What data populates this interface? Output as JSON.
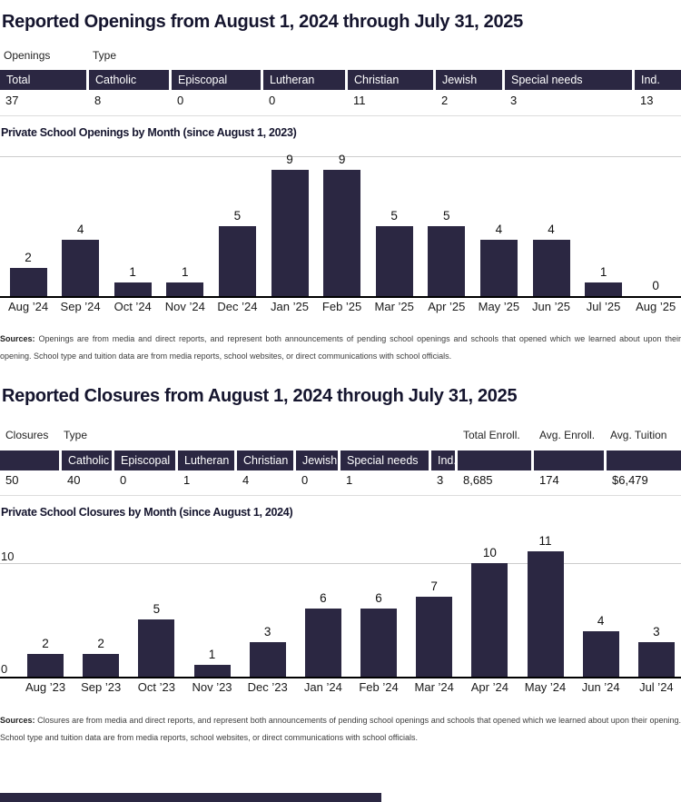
{
  "openings": {
    "title": "Reported Openings from August 1, 2024 through July 31, 2025",
    "group_labels": [
      "Openings",
      "Type"
    ],
    "table": {
      "header_cells": [
        "Total",
        "Catholic",
        "Episcopal",
        "Lutheran",
        "Christian",
        "Jewish",
        "Special needs",
        "Ind."
      ],
      "values": [
        "37",
        "8",
        "0",
        "0",
        "11",
        "2",
        "3",
        "13"
      ]
    },
    "sources_label": "Sources:",
    "sources_text": "Openings are from media and direct reports, and represent both announcements of pending school openings and schools that opened which we learned about upon their opening. School type and tuition data are from media reports, school websites, or direct communications with school officials."
  },
  "closures": {
    "title": "Reported Closures from August 1, 2024 through July 31, 2025",
    "group_labels": [
      "Closures",
      "Type",
      "Total Enroll.",
      "Avg. Enroll.",
      "Avg. Tuition"
    ],
    "table": {
      "header_cells": [
        "",
        "Catholic",
        "Episcopal",
        "Lutheran",
        "Christian",
        "Jewish",
        "Special needs",
        "Ind.",
        "",
        "",
        ""
      ],
      "values": [
        "50",
        "40",
        "0",
        "1",
        "4",
        "0",
        "1",
        "3",
        "8,685",
        "174",
        "$6,479"
      ]
    },
    "sources_label": "Sources:",
    "sources_text": "Closures are from media and direct reports, and represent both announcements of pending school openings and schools that opened which we learned about upon their opening. School type and tuition data are from media reports, school websites, or direct communications with school officials."
  },
  "chart_data": [
    {
      "type": "bar",
      "title": "Private School Openings by Month (since August 1, 2023)",
      "categories": [
        "Aug ’24",
        "Sep ’24",
        "Oct ’24",
        "Nov ’24",
        "Dec ’24",
        "Jan ’25",
        "Feb ’25",
        "Mar ’25",
        "Apr ’25",
        "May ’25",
        "Jun ’25",
        "Jul ’25",
        "Aug ’25"
      ],
      "values": [
        2,
        4,
        1,
        1,
        5,
        9,
        9,
        5,
        5,
        4,
        4,
        1,
        0
      ],
      "ylim": [
        0,
        10
      ],
      "gridline_value": 10,
      "y_tick_labels": [],
      "legend": "none",
      "bar_color": "#2b2742"
    },
    {
      "type": "bar",
      "title": "Private School Closures by Month (since August 1, 2024)",
      "categories": [
        "Aug ’23",
        "Sep ’23",
        "Oct ’23",
        "Nov ’23",
        "Dec ’23",
        "Jan ’24",
        "Feb ’24",
        "Mar ’24",
        "Apr ’24",
        "May ’24",
        "Jun ’24",
        "Jul ’24"
      ],
      "values": [
        2,
        2,
        5,
        1,
        3,
        6,
        6,
        7,
        10,
        11,
        4,
        3
      ],
      "ylim": [
        0,
        11
      ],
      "gridline_value": 10,
      "y_tick_labels": [
        {
          "text": "10",
          "value": 10
        },
        {
          "text": "0",
          "value": 0
        }
      ],
      "legend": "none",
      "bar_color": "#2b2742"
    }
  ],
  "colors": {
    "navy": "#2b2742",
    "title_text": "#15152e",
    "gridline": "#cccccc",
    "axis": "#000000"
  }
}
